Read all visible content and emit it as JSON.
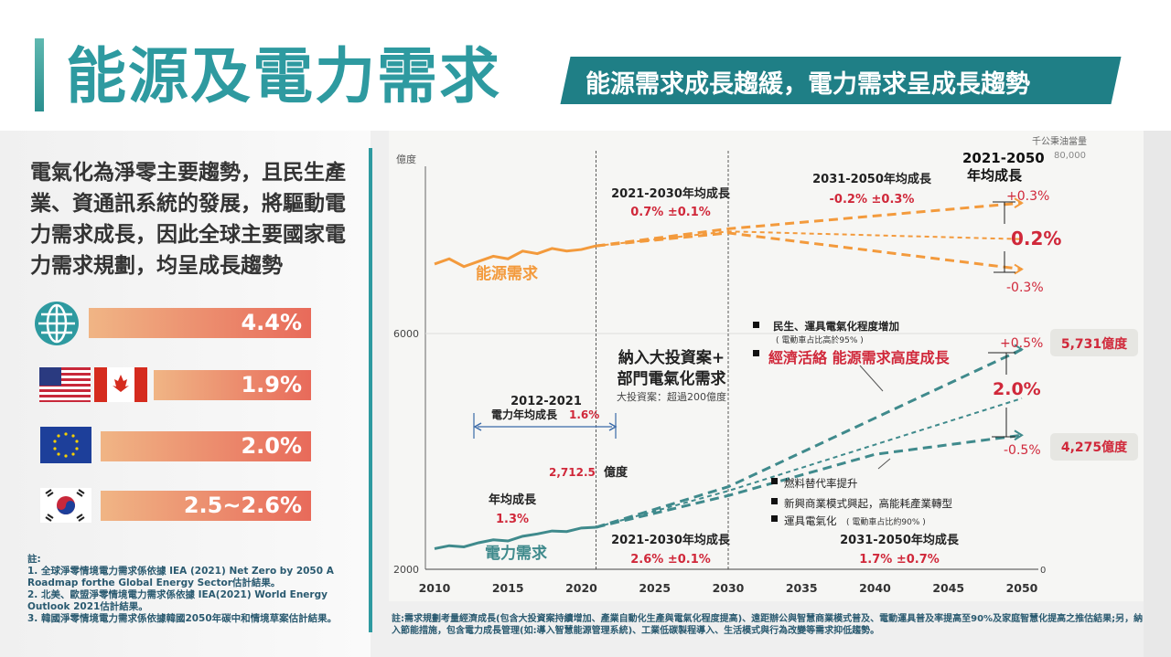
{
  "header": {
    "title": "能源及電力需求",
    "tag": "能源需求成長趨緩，電力需求呈成長趨勢"
  },
  "left": {
    "text": "電氣化為淨零主要趨勢，且民生產業、資通訊系統的發展，將驅動電力需求成長，因此全球主要國家電力需求規劃，均呈成長趨勢",
    "rows": [
      {
        "icon": "globe-icon",
        "label": "4.4%"
      },
      {
        "icon": "us-canada-flags-icon",
        "label": "1.9%"
      },
      {
        "icon": "eu-flag-icon",
        "label": "2.0%"
      },
      {
        "icon": "korea-flag-icon",
        "label": "2.5~2.6%"
      }
    ],
    "notes": [
      "註:",
      "1. 全球淨零情境電力需求係依據 IEA (2021) Net Zero by 2050 A Roadmap forthe Global Energy Sector估計結果。",
      "2. 北美、歐盟淨零情境電力需求係依據 IEA(2021) World Energy Outlook 2021估計結果。",
      "3. 韓國淨零情境電力需求係依據韓國2050年碳中和情境草案估計結果。"
    ]
  },
  "bottom_note": "註:需求規劃考量經濟成長(包含大投資案持續增加、產業自動化生產與電氣化程度提高)、遠距辦公與智慧商業模式普及、電動運具普及率提高至90%及家庭智慧化提高之推估結果;另，納入節能措施，包含電力成長管理(如:導入智慧能源管理系統)、工業低碳製程導入、生活模式與行為改變等需求抑低趨勢。",
  "colors": {
    "energy": "#f39a3c",
    "electricity": "#3f8a8c",
    "red": "#d0283a",
    "teal": "#2e9aa0"
  },
  "chart_data": {
    "type": "line",
    "left_axis": {
      "label": "億度",
      "ticks": [
        "6000",
        "2000"
      ],
      "range": [
        2000,
        6000
      ]
    },
    "right_axis": {
      "label": "千公秉油當量",
      "ticks": [
        "80,000",
        "0"
      ],
      "range": [
        0,
        80000
      ]
    },
    "x_ticks": [
      "2010",
      "2015",
      "2020",
      "2025",
      "2030",
      "2035",
      "2040",
      "2045",
      "2050"
    ],
    "xlim": [
      2010,
      2050
    ],
    "series": [
      {
        "name": "能源需求",
        "axis": "right",
        "x": [
          2010,
          2011,
          2012,
          2013,
          2014,
          2015,
          2016,
          2017,
          2018,
          2019,
          2020,
          2021
        ],
        "values": [
          59000,
          60000,
          58500,
          59500,
          60500,
          60000,
          61500,
          61000,
          62000,
          61500,
          61800,
          62500
        ],
        "projections": [
          {
            "x": [
              2021,
              2030,
              2050
            ],
            "values": [
              62500,
              65800,
              70800
            ]
          },
          {
            "x": [
              2021,
              2030,
              2050
            ],
            "values": [
              62500,
              65300,
              63800
            ]
          },
          {
            "x": [
              2021,
              2030,
              2050
            ],
            "values": [
              62500,
              65000,
              58000
            ]
          }
        ]
      },
      {
        "name": "電力需求",
        "axis": "left",
        "x": [
          2010,
          2011,
          2012,
          2013,
          2014,
          2015,
          2016,
          2017,
          2018,
          2019,
          2020,
          2021
        ],
        "values": [
          2350,
          2400,
          2380,
          2450,
          2500,
          2480,
          2560,
          2600,
          2650,
          2640,
          2700,
          2712.5
        ],
        "projections": [
          {
            "x": [
              2021,
              2030,
              2050
            ],
            "values": [
              2712.5,
              3400,
              5731
            ]
          },
          {
            "x": [
              2021,
              2030,
              2050
            ],
            "values": [
              2712.5,
              3330,
              4900
            ]
          },
          {
            "x": [
              2021,
              2030,
              2040,
              2050
            ],
            "values": [
              2712.5,
              3250,
              3950,
              4275
            ]
          }
        ]
      }
    ],
    "annotations": {
      "e_2130": {
        "title": "2021-2030年均成長",
        "value": "0.7% ±0.1%"
      },
      "e_3150": {
        "title": "2031-2050年均成長",
        "value": "-0.2% ±0.3%"
      },
      "e_2150": {
        "title1": "2021-2050",
        "title2": "年均成長",
        "up": "+0.3%",
        "mid": "0.2%",
        "down": "-0.3%"
      },
      "el_hist": {
        "title": "年均成長",
        "value": "1.3%"
      },
      "el_1221": {
        "title": "2012-2021",
        "label": "電力年均成長",
        "value": "1.6%"
      },
      "el_2021": {
        "value": "2,712.5",
        "unit": "億度"
      },
      "el_2130": {
        "title": "2021-2030年均成長",
        "value": "2.6% ±0.1%"
      },
      "el_3150": {
        "title": "2031-2050年均成長",
        "value": "1.7% ±0.7%"
      },
      "el_2150": {
        "up": "+0.5%",
        "mid": "2.0%",
        "down": "-0.5%",
        "high": "5,731億度",
        "low": "4,275億度"
      },
      "invest": {
        "l1": "納入大投資案+",
        "l2": "部門電氣化需求",
        "l3": "大投資案：超過200億度"
      },
      "high_bullets": {
        "b1": "民生、運具電氣化程度增加",
        "b1s": "( 電動車占比高於95% )",
        "b2": "經濟活絡 能源需求高度成長"
      },
      "low_bullets": {
        "b1": "燃料替代率提升",
        "b2": "新興商業模式興起，高能耗產業轉型",
        "b3": "運具電氣化",
        "b3s": "( 電動車占比約90% )"
      }
    }
  }
}
